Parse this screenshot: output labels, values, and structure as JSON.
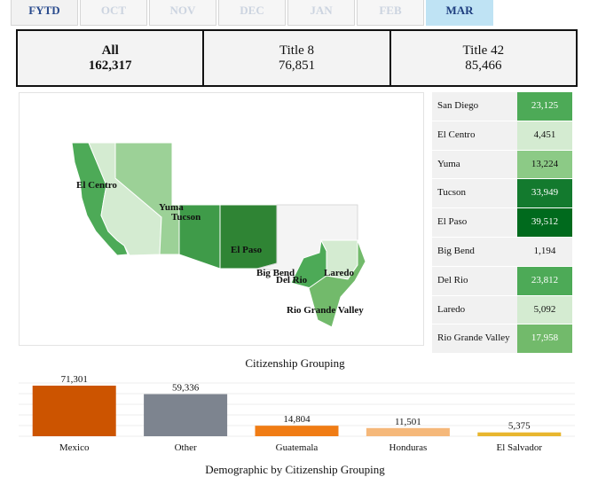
{
  "tabs": [
    {
      "label": "FYTD",
      "state": "first"
    },
    {
      "label": "OCT",
      "state": "disabled"
    },
    {
      "label": "NOV",
      "state": "disabled"
    },
    {
      "label": "DEC",
      "state": "disabled"
    },
    {
      "label": "JAN",
      "state": "disabled"
    },
    {
      "label": "FEB",
      "state": "disabled"
    },
    {
      "label": "MAR",
      "state": "active"
    }
  ],
  "summary": {
    "all": {
      "label": "All",
      "value": "162,317"
    },
    "title8": {
      "label": "Title 8",
      "value": "76,851"
    },
    "title42": {
      "label": "Title 42",
      "value": "85,466"
    }
  },
  "map_labels": {
    "el_centro": "El Centro",
    "yuma": "Yuma",
    "tucson": "Tucson",
    "el_paso": "El Paso",
    "big_bend": "Big Bend",
    "del_rio": "Del Rio",
    "laredo": "Laredo",
    "rio_grande_valley": "Rio Grande Valley"
  },
  "sectors": [
    {
      "name": "San Diego",
      "value": "23,125",
      "color": "#4daa57"
    },
    {
      "name": "El Centro",
      "value": "4,451",
      "color": "#d4ebd1"
    },
    {
      "name": "Yuma",
      "value": "13,224",
      "color": "#8cca86"
    },
    {
      "name": "Tucson",
      "value": "33,949",
      "color": "#137a2e"
    },
    {
      "name": "El Paso",
      "value": "39,512",
      "color": "#006a1d"
    },
    {
      "name": "Big Bend",
      "value": "1,194",
      "color": "#f1f1f1"
    },
    {
      "name": "Del Rio",
      "value": "23,812",
      "color": "#4daa57"
    },
    {
      "name": "Laredo",
      "value": "5,092",
      "color": "#d4ebd1"
    },
    {
      "name": "Rio Grande Valley",
      "value": "17,958",
      "color": "#72ba6b"
    }
  ],
  "chart_title": "Citizenship Grouping",
  "footer_title": "Demographic by Citizenship Grouping",
  "chart_data": {
    "type": "bar",
    "title": "Citizenship Grouping",
    "categories": [
      "Mexico",
      "Other",
      "Guatemala",
      "Honduras",
      "El Salvador"
    ],
    "values": [
      71301,
      59336,
      14804,
      11501,
      5375
    ],
    "value_labels": [
      "71,301",
      "59,336",
      "14,804",
      "11,501",
      "5,375"
    ],
    "colors": [
      "#cc5400",
      "#7d848f",
      "#f07c14",
      "#f5b87a",
      "#e8b62e"
    ],
    "ylim": [
      0,
      75000
    ],
    "grid": true
  }
}
